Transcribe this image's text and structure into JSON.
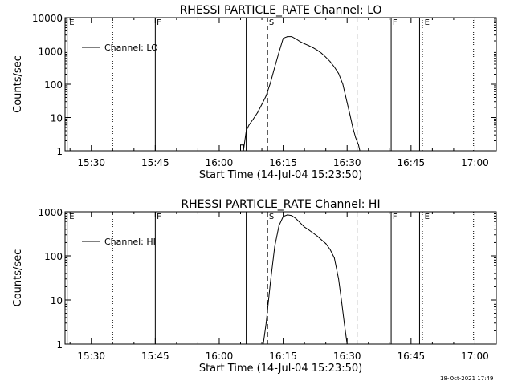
{
  "timestamp": "18-Oct-2021 17:49",
  "chart_data": [
    {
      "type": "line",
      "title": "RHESSI PARTICLE_RATE Channel: LO",
      "xlabel": "Start Time (14-Jul-04 15:23:50)",
      "ylabel": "Counts/sec",
      "x_unit": "minutes",
      "xlim": [
        "15:23:50",
        "17:05:00"
      ],
      "ylim": [
        1,
        10000
      ],
      "yscale": "log",
      "grid": false,
      "legend": {
        "placement": "top-left",
        "entries": [
          "Channel: LO"
        ]
      },
      "x_tick_labels": [
        "15:30",
        "15:45",
        "16:00",
        "16:15",
        "16:30",
        "16:45",
        "17:00"
      ],
      "x_ticks": [
        "15:30",
        "15:45",
        "16:00",
        "16:15",
        "16:30",
        "16:45",
        "17:00"
      ],
      "y_tick_labels": [
        "1",
        "10",
        "100",
        "1000",
        "10000"
      ],
      "y_ticks": [
        1,
        10,
        100,
        1000,
        10000
      ],
      "solid_lines": [
        "15:24:20",
        "15:45:00",
        "16:06:20",
        "16:40:20",
        "16:47:00"
      ],
      "dashed_lines": [
        "16:11:20",
        "16:32:20"
      ],
      "dotted_lines": [
        "15:35:00",
        "16:47:40",
        "16:59:40"
      ],
      "markers": [
        {
          "label": "E",
          "x": "15:24:50"
        },
        {
          "label": "F",
          "x": "15:45:20"
        },
        {
          "label": "S",
          "x": "16:11:40"
        },
        {
          "label": "F",
          "x": "16:40:40"
        },
        {
          "label": "E",
          "x": "16:48:10"
        }
      ],
      "series": [
        {
          "name": "Channel: LO",
          "x": [
            "16:04:40",
            "16:05:00",
            "16:05:00",
            "16:05:40",
            "16:05:40",
            "16:06:20",
            "16:07:00",
            "16:08:00",
            "16:09:00",
            "16:10:00",
            "16:11:00",
            "16:12:00",
            "16:13:00",
            "16:14:00",
            "16:15:00",
            "16:16:00",
            "16:17:00",
            "16:18:00",
            "16:19:00",
            "16:20:00",
            "16:21:00",
            "16:22:00",
            "16:23:00",
            "16:24:00",
            "16:25:00",
            "16:26:00",
            "16:27:00",
            "16:28:00",
            "16:29:00",
            "16:30:00",
            "16:30:40",
            "16:31:20",
            "16:32:00",
            "16:32:40",
            "16:33:00"
          ],
          "values": [
            1,
            1,
            1.5,
            1.5,
            1,
            4,
            6,
            9,
            14,
            25,
            45,
            110,
            320,
            900,
            2400,
            2700,
            2700,
            2300,
            1900,
            1650,
            1450,
            1250,
            1050,
            850,
            650,
            480,
            330,
            210,
            100,
            28,
            12,
            5,
            2.5,
            1.5,
            1
          ]
        }
      ]
    },
    {
      "type": "line",
      "title": "RHESSI PARTICLE_RATE Channel: HI",
      "xlabel": "Start Time (14-Jul-04 15:23:50)",
      "ylabel": "Counts/sec",
      "x_unit": "minutes",
      "xlim": [
        "15:23:50",
        "17:05:00"
      ],
      "ylim": [
        1,
        1000
      ],
      "yscale": "log",
      "grid": false,
      "legend": {
        "placement": "top-left",
        "entries": [
          "Channel: HI"
        ]
      },
      "x_tick_labels": [
        "15:30",
        "15:45",
        "16:00",
        "16:15",
        "16:30",
        "16:45",
        "17:00"
      ],
      "x_ticks": [
        "15:30",
        "15:45",
        "16:00",
        "16:15",
        "16:30",
        "16:45",
        "17:00"
      ],
      "y_tick_labels": [
        "1",
        "10",
        "100",
        "1000"
      ],
      "y_ticks": [
        1,
        10,
        100,
        1000
      ],
      "solid_lines": [
        "15:24:20",
        "15:45:00",
        "16:06:20",
        "16:40:20",
        "16:47:00"
      ],
      "dashed_lines": [
        "16:11:20",
        "16:32:20"
      ],
      "dotted_lines": [
        "15:35:00",
        "16:47:40",
        "16:59:40"
      ],
      "markers": [
        {
          "label": "E",
          "x": "15:24:50"
        },
        {
          "label": "F",
          "x": "15:45:20"
        },
        {
          "label": "S",
          "x": "16:11:40"
        },
        {
          "label": "F",
          "x": "16:40:40"
        },
        {
          "label": "E",
          "x": "16:48:10"
        }
      ],
      "series": [
        {
          "name": "Channel: HI",
          "x": [
            "16:10:20",
            "16:11:00",
            "16:12:00",
            "16:13:00",
            "16:14:00",
            "16:15:00",
            "16:16:00",
            "16:17:00",
            "16:18:00",
            "16:19:00",
            "16:20:00",
            "16:21:00",
            "16:22:00",
            "16:23:00",
            "16:24:00",
            "16:25:00",
            "16:26:00",
            "16:27:00",
            "16:28:00",
            "16:28:40",
            "16:29:20",
            "16:30:00"
          ],
          "values": [
            1,
            3,
            25,
            160,
            480,
            780,
            850,
            820,
            700,
            560,
            450,
            390,
            330,
            280,
            230,
            190,
            140,
            90,
            30,
            10,
            3,
            1
          ]
        }
      ]
    }
  ]
}
